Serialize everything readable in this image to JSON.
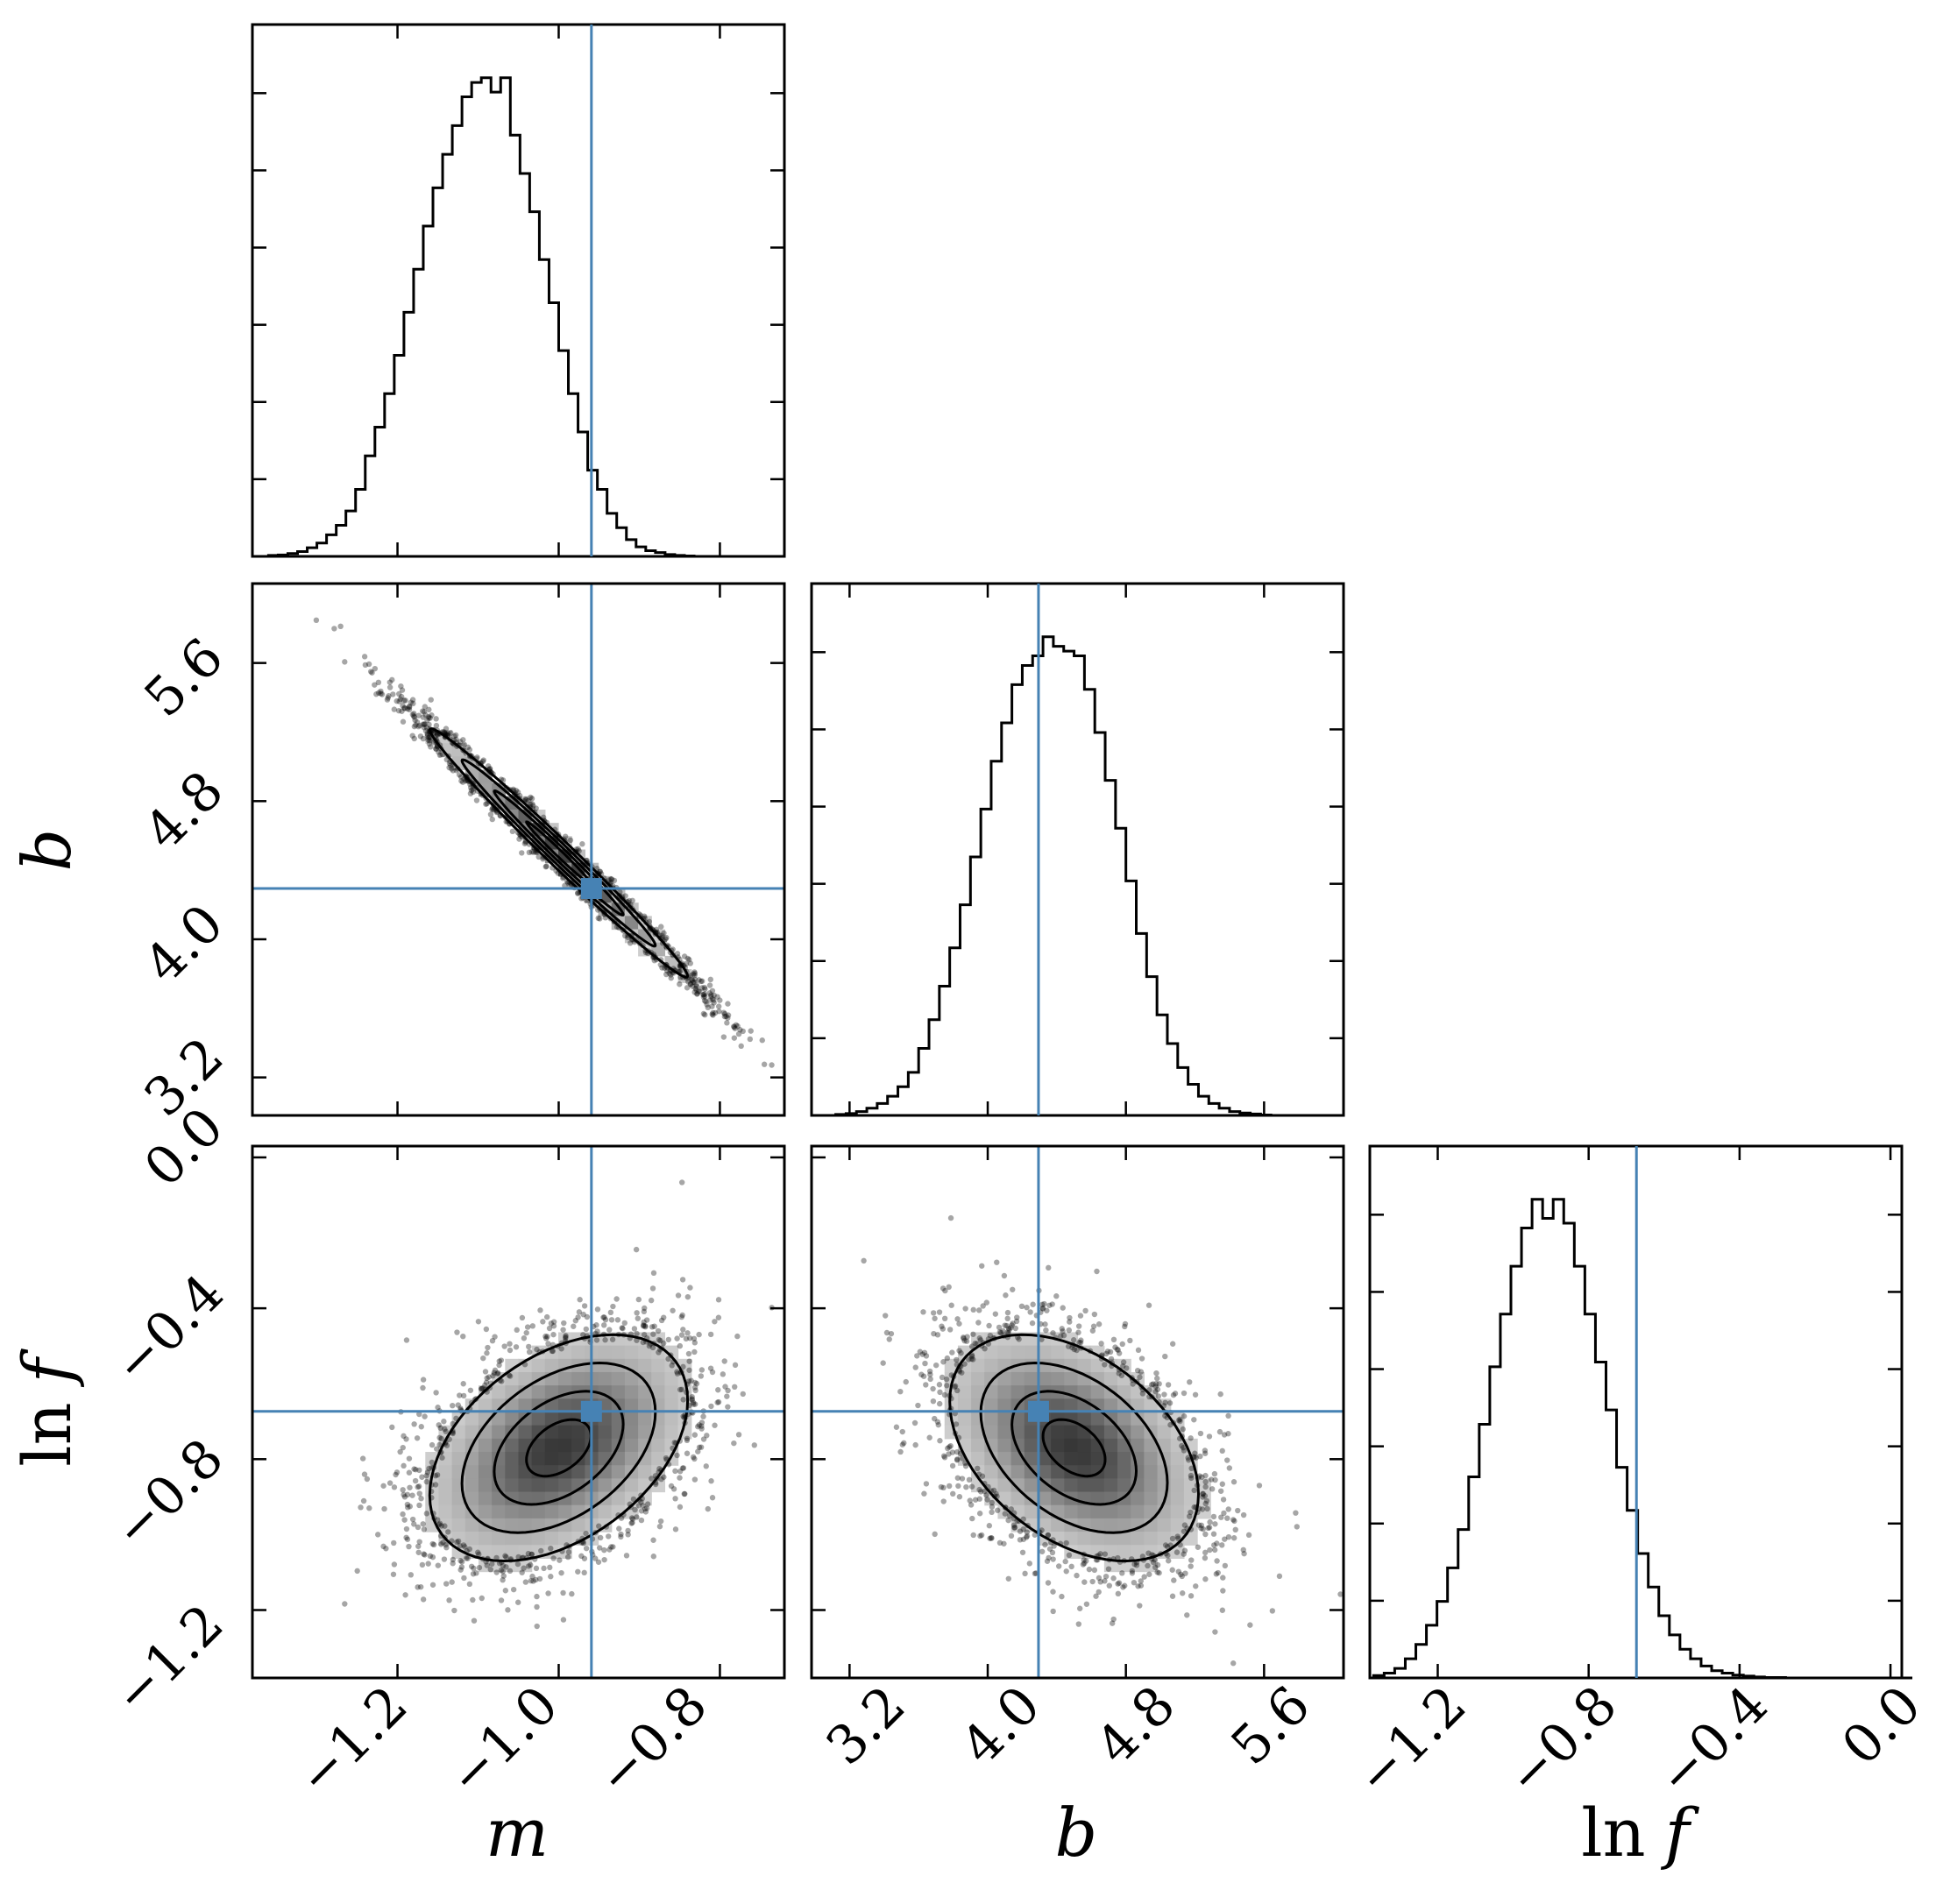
{
  "chart_data": {
    "type": "corner",
    "colors": {
      "truth": "#4682b4",
      "histogram": "#000000",
      "axes": "#000000",
      "samples": "#000000",
      "density_light": "#e3e3e3",
      "density_dark": "#3a3a3a"
    },
    "parameters": [
      {
        "name": "m",
        "label_main": "m",
        "label_prefix": "",
        "range": [
          -1.38,
          -0.72
        ],
        "ticks": [
          "−1.2",
          "−1.0",
          "−0.8"
        ],
        "tick_values": [
          -1.2,
          -1.0,
          -0.8
        ],
        "truth": -0.9594
      },
      {
        "name": "b",
        "label_main": "b",
        "label_prefix": "",
        "range": [
          2.98,
          6.06
        ],
        "ticks": [
          "3.2",
          "4.0",
          "4.8",
          "5.6"
        ],
        "tick_values": [
          3.2,
          4.0,
          4.8,
          5.6
        ],
        "truth": 4.294
      },
      {
        "name": "lnf",
        "label_main": "f",
        "label_prefix": "ln",
        "range": [
          -1.38,
          0.03
        ],
        "ticks": [
          "−1.2",
          "−0.8",
          "−0.4",
          "0.0"
        ],
        "tick_values": [
          -1.2,
          -0.8,
          -0.4,
          0.0
        ],
        "truth": -0.6733
      }
    ],
    "y_axis_labels": {
      "b": {
        "label_main": "b",
        "label_prefix": "",
        "ticks": [
          "3.2",
          "4.0",
          "4.8",
          "5.6"
        ],
        "tick_values": [
          3.2,
          4.0,
          4.8,
          5.6
        ]
      },
      "lnf": {
        "label_main": "f",
        "label_prefix": "ln",
        "ticks": [
          "0.0",
          "−0.4",
          "−0.8",
          "−1.2"
        ],
        "tick_values": [
          0.0,
          -0.4,
          -0.8,
          -1.2
        ]
      }
    },
    "histograms": {
      "m": {
        "bin_start": -1.36,
        "bin_width": 0.012,
        "counts": [
          0.002,
          0.003,
          0.006,
          0.01,
          0.018,
          0.028,
          0.045,
          0.065,
          0.095,
          0.14,
          0.21,
          0.27,
          0.34,
          0.42,
          0.51,
          0.6,
          0.69,
          0.77,
          0.84,
          0.9,
          0.96,
          0.99,
          1.0,
          0.97,
          1.0,
          0.88,
          0.8,
          0.72,
          0.62,
          0.53,
          0.43,
          0.34,
          0.26,
          0.18,
          0.14,
          0.09,
          0.06,
          0.035,
          0.02,
          0.012,
          0.008,
          0.004,
          0.002,
          0.001,
          0.0
        ]
      },
      "b": {
        "bin_start": 3.0,
        "bin_width": 0.06,
        "counts": [
          0.0,
          0.0,
          0.002,
          0.004,
          0.008,
          0.015,
          0.025,
          0.04,
          0.06,
          0.09,
          0.14,
          0.2,
          0.27,
          0.35,
          0.44,
          0.54,
          0.64,
          0.74,
          0.82,
          0.9,
          0.94,
          0.96,
          1.0,
          0.98,
          0.97,
          0.96,
          0.89,
          0.8,
          0.7,
          0.6,
          0.49,
          0.38,
          0.29,
          0.21,
          0.15,
          0.1,
          0.065,
          0.04,
          0.025,
          0.015,
          0.008,
          0.005,
          0.003,
          0.001,
          0.0,
          0.0,
          0.0,
          0.0,
          0.0,
          0.0,
          0.0
        ]
      },
      "lnf": {
        "bin_start": -1.37,
        "bin_width": 0.028,
        "counts": [
          0.005,
          0.01,
          0.02,
          0.04,
          0.07,
          0.11,
          0.16,
          0.23,
          0.31,
          0.42,
          0.53,
          0.65,
          0.76,
          0.86,
          0.94,
          1.0,
          0.96,
          1.0,
          0.95,
          0.86,
          0.76,
          0.66,
          0.56,
          0.44,
          0.35,
          0.26,
          0.19,
          0.13,
          0.09,
          0.06,
          0.04,
          0.025,
          0.015,
          0.01,
          0.006,
          0.004,
          0.002,
          0.001,
          0.001,
          0.0,
          0.0,
          0.0,
          0.0,
          0.0,
          0.0,
          0.0,
          0.0,
          0.0,
          0.0,
          0.0,
          0.0
        ]
      }
    },
    "correlations": {
      "m_b": -0.99,
      "m_lnf": 0.42,
      "b_lnf": -0.41
    },
    "posterior_means": {
      "m": -1.0,
      "b": 4.5,
      "lnf": -0.77
    },
    "posterior_sigmas": {
      "m": 0.08,
      "b": 0.36,
      "lnf": 0.15
    },
    "contour_levels_sigma": [
      0.5,
      1.0,
      1.5,
      2.0
    ],
    "n_scatter_points": 3500
  }
}
